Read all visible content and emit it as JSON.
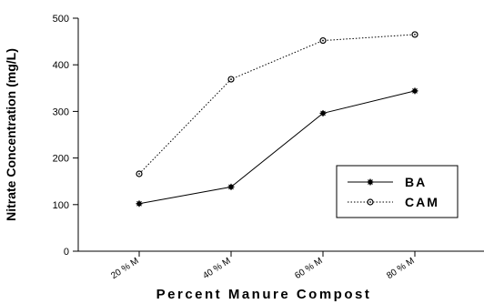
{
  "chart_data": {
    "type": "line",
    "categories": [
      "20 % M",
      "40 % M",
      "60 % M",
      "80 % M"
    ],
    "series": [
      {
        "name": "BA",
        "values": [
          102,
          138,
          296,
          344
        ],
        "line_style": "solid",
        "marker": "filled-star"
      },
      {
        "name": "CAM",
        "values": [
          166,
          369,
          452,
          465
        ],
        "line_style": "dotted",
        "marker": "open-circle"
      }
    ],
    "xlabel": "Percent Manure Compost",
    "ylabel": "Nitrate Concentration (mg/L)",
    "ylim": [
      0,
      500
    ],
    "yticks": [
      "0",
      "100",
      "200",
      "300",
      "400",
      "500"
    ],
    "grid": false,
    "legend_position": "right-center"
  }
}
